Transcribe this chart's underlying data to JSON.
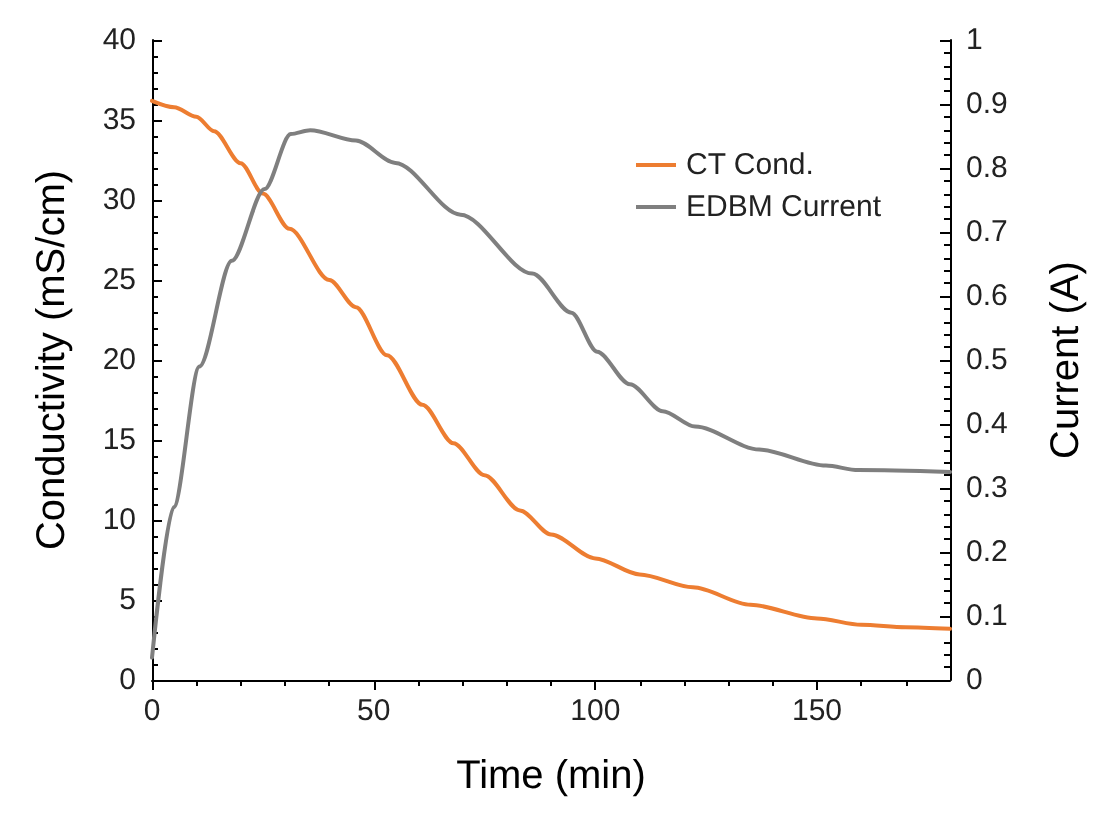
{
  "chart_data": {
    "type": "line",
    "xlabel": "Time (min)",
    "ylabel": "Conductivity (mS/cm)",
    "y2label": "Current (A)",
    "xlim": [
      0,
      180
    ],
    "xticks": [
      0,
      50,
      100,
      150
    ],
    "ylim": [
      0,
      40
    ],
    "yticks": [
      0,
      5,
      10,
      15,
      20,
      25,
      30,
      35,
      40
    ],
    "y2lim": [
      0,
      1
    ],
    "y2ticks": [
      0,
      0.1,
      0.2,
      0.3,
      0.4,
      0.5,
      0.6,
      0.7,
      0.8,
      0.9,
      1
    ],
    "grid": false,
    "legend": "top right",
    "marker": "none",
    "line_style": "solid",
    "series": [
      {
        "name": "CT Cond.",
        "color": "#ed7d31",
        "x": [
          0,
          5,
          10,
          14,
          20,
          25,
          31,
          40,
          46,
          53,
          61,
          68,
          75,
          83,
          90,
          100,
          110,
          122,
          135,
          150,
          160,
          170,
          180
        ],
        "values": [
          36.2,
          35.8,
          35.2,
          34.3,
          32.3,
          30.4,
          28.2,
          25,
          23.3,
          20.3,
          17.2,
          14.8,
          12.8,
          10.6,
          9.1,
          7.6,
          6.6,
          5.8,
          4.7,
          3.85,
          3.45,
          3.3,
          3.2
        ]
      },
      {
        "name": "EDBM Current",
        "color": "#7f7f7f",
        "axis": "y2",
        "x": [
          0,
          4.9,
          10.7,
          18,
          25.4,
          31.3,
          35.7,
          46,
          54.9,
          69.6,
          85.8,
          94.6,
          100.4,
          107.8,
          115.2,
          122.5,
          137,
          152,
          159.3,
          180
        ],
        "values": [
          0.035,
          0.27,
          0.49,
          0.655,
          0.767,
          0.853,
          0.859,
          0.843,
          0.808,
          0.727,
          0.635,
          0.574,
          0.513,
          0.462,
          0.42,
          0.396,
          0.36,
          0.335,
          0.328,
          0.325
        ]
      }
    ]
  }
}
